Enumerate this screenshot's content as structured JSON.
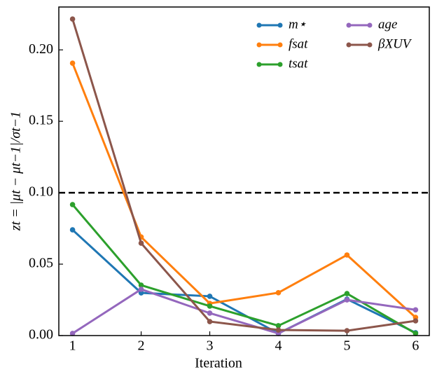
{
  "chart_data": {
    "type": "line",
    "x_label": "Iteration",
    "y_label": "zt = |μt − μt−1|/σt−1",
    "x": [
      1,
      2,
      3,
      4,
      5,
      6
    ],
    "series": [
      {
        "name": "m⋆",
        "color": "#1f77b4",
        "values": [
          0.074,
          0.0299,
          0.0275,
          0.0015,
          0.0255,
          0.002
        ]
      },
      {
        "name": "fsat",
        "color": "#ff7f0e",
        "values": [
          0.1907,
          0.069,
          0.0225,
          0.03,
          0.0564,
          0.0127
        ]
      },
      {
        "name": "tsat",
        "color": "#2ca02c",
        "values": [
          0.0917,
          0.0353,
          0.0206,
          0.0069,
          0.0294,
          0.0015
        ]
      },
      {
        "name": "age",
        "color": "#9467bd",
        "values": [
          0.0015,
          0.0324,
          0.0157,
          0.0015,
          0.025,
          0.018
        ]
      },
      {
        "name": "βXUV",
        "color": "#8c564b",
        "values": [
          0.2216,
          0.0647,
          0.0098,
          0.0039,
          0.0034,
          0.0103
        ]
      }
    ],
    "reference_line": {
      "y": 0.1,
      "color": "#000",
      "style": "dashed"
    },
    "xlim": [
      0.8,
      6.2
    ],
    "ylim": [
      0,
      0.23
    ],
    "xticks": [
      1,
      2,
      3,
      4,
      5,
      6
    ],
    "yticks": [
      {
        "value": 0,
        "label": "0.00"
      },
      {
        "value": 0.05,
        "label": "0.05"
      },
      {
        "value": 0.1,
        "label": "0.10"
      },
      {
        "value": 0.15,
        "label": "0.15"
      },
      {
        "value": 0.2,
        "label": "0.20"
      }
    ],
    "legend": "upper right",
    "grid": false
  }
}
